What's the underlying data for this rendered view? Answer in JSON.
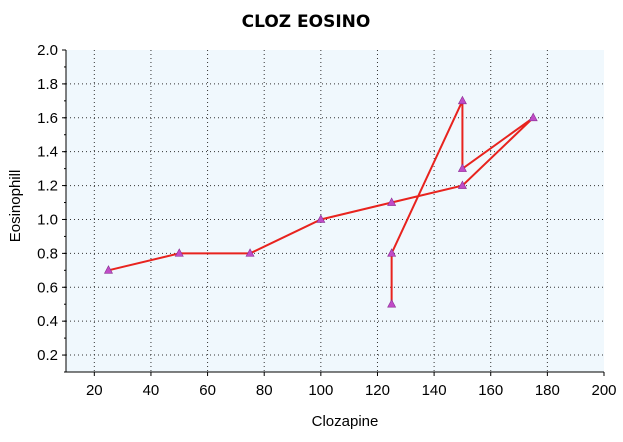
{
  "chart_data": {
    "type": "line",
    "title": "CLOZ EOSINO",
    "xlabel": "Clozapine",
    "ylabel": "Eosinophill",
    "xlim": [
      10,
      200
    ],
    "ylim": [
      0.1,
      2.0
    ],
    "x_ticks": [
      20,
      40,
      60,
      80,
      100,
      120,
      140,
      160,
      180,
      200
    ],
    "y_ticks": [
      0.2,
      0.4,
      0.6,
      0.8,
      1.0,
      1.2,
      1.4,
      1.6,
      1.8,
      2.0
    ],
    "grid": true,
    "colors": {
      "line": "#e8231e",
      "marker": "#c04bc8",
      "plot_background": "#f0f8fd"
    },
    "series": [
      {
        "x": [
          25,
          50,
          75,
          100,
          125,
          150,
          175,
          150,
          150,
          125,
          125
        ],
        "y": [
          0.7,
          0.8,
          0.8,
          1.0,
          1.1,
          1.2,
          1.6,
          1.3,
          1.7,
          0.8,
          0.5
        ]
      }
    ]
  }
}
